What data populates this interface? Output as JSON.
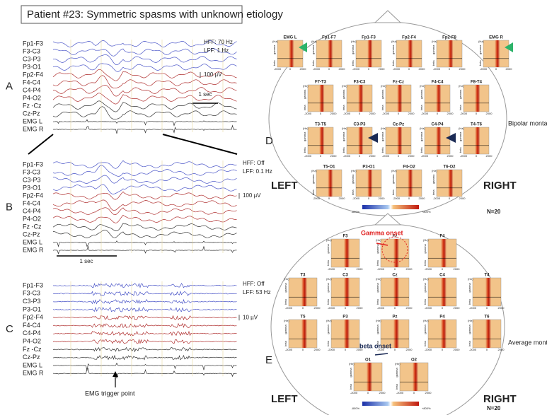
{
  "title": "Patient #23: Symmetric spasms with unknown etiology",
  "panels": {
    "A": {
      "label": "A",
      "channels": [
        "Fp1-F3",
        "F3-C3",
        "C3-P3",
        "P3-O1",
        "Fp2-F4",
        "F4-C4",
        "C4-P4",
        "P4-O2",
        "Fz -Cz",
        "Cz-Pz",
        "EMG L",
        "EMG R"
      ],
      "filters": [
        "HFF:  70 Hz",
        "LFF:  1 Hz"
      ],
      "amplitude": "100 µV",
      "time": "1 sec"
    },
    "B": {
      "label": "B",
      "channels": [
        "Fp1-F3",
        "F3-C3",
        "C3-P3",
        "P3-O1",
        "Fp2-F4",
        "F4-C4",
        "C4-P4",
        "P4-O2",
        "Fz -Cz",
        "Cz-Pz",
        "EMG L",
        "EMG R"
      ],
      "filters": [
        "HFF: Off",
        "LFF: 0.1 Hz"
      ],
      "amplitude": "100 µV",
      "time": "1 sec"
    },
    "C": {
      "label": "C",
      "channels": [
        "Fp1-F3",
        "F3-C3",
        "C3-P3",
        "P3-O1",
        "Fp2-F4",
        "F4-C4",
        "C4-P4",
        "P4-O2",
        "Fz -Cz",
        "Cz-Pz",
        "EMG L",
        "EMG R"
      ],
      "filters": [
        "HFF: Off",
        "LFF: 53 Hz"
      ],
      "amplitude": "10 µV",
      "annotation": "EMG trigger point"
    },
    "D": {
      "label": "D",
      "montage": "Bipolar montage",
      "left": "LEFT",
      "right": "RIGHT",
      "n": "N=20",
      "colorbar": [
        "-800%",
        "+800%"
      ],
      "electrodes": [
        "EMG L",
        "Fp1-F7",
        "Fp1-F3",
        "Fp2-F4",
        "Fp2-F8",
        "EMG R",
        "F7-T3",
        "F3-C3",
        "Fz-Cz",
        "F4-C4",
        "F8-T4",
        "T3-T5",
        "C3-P3",
        "Cz-Pz",
        "C4-P4",
        "T4-T6",
        "T5-O1",
        "P3-O1",
        "P4-O2",
        "T6-O2"
      ]
    },
    "E": {
      "label": "E",
      "montage": "Average montage",
      "left": "LEFT",
      "right": "RIGHT",
      "n": "N=20",
      "colorbar": [
        "-800%",
        "+800%"
      ],
      "electrodes": [
        "F3",
        "Fz",
        "F4",
        "T3",
        "C3",
        "Cz",
        "C4",
        "T4",
        "T5",
        "P3",
        "Pz",
        "P4",
        "T6",
        "O1",
        "O2"
      ],
      "annotations": [
        "Gamma onset",
        "beta onset"
      ]
    }
  },
  "tile_axis": {
    "unit": "(Hz)",
    "bands": [
      "gamma",
      "beta"
    ],
    "xticks": [
      "-2000",
      "0",
      "2000"
    ]
  }
}
